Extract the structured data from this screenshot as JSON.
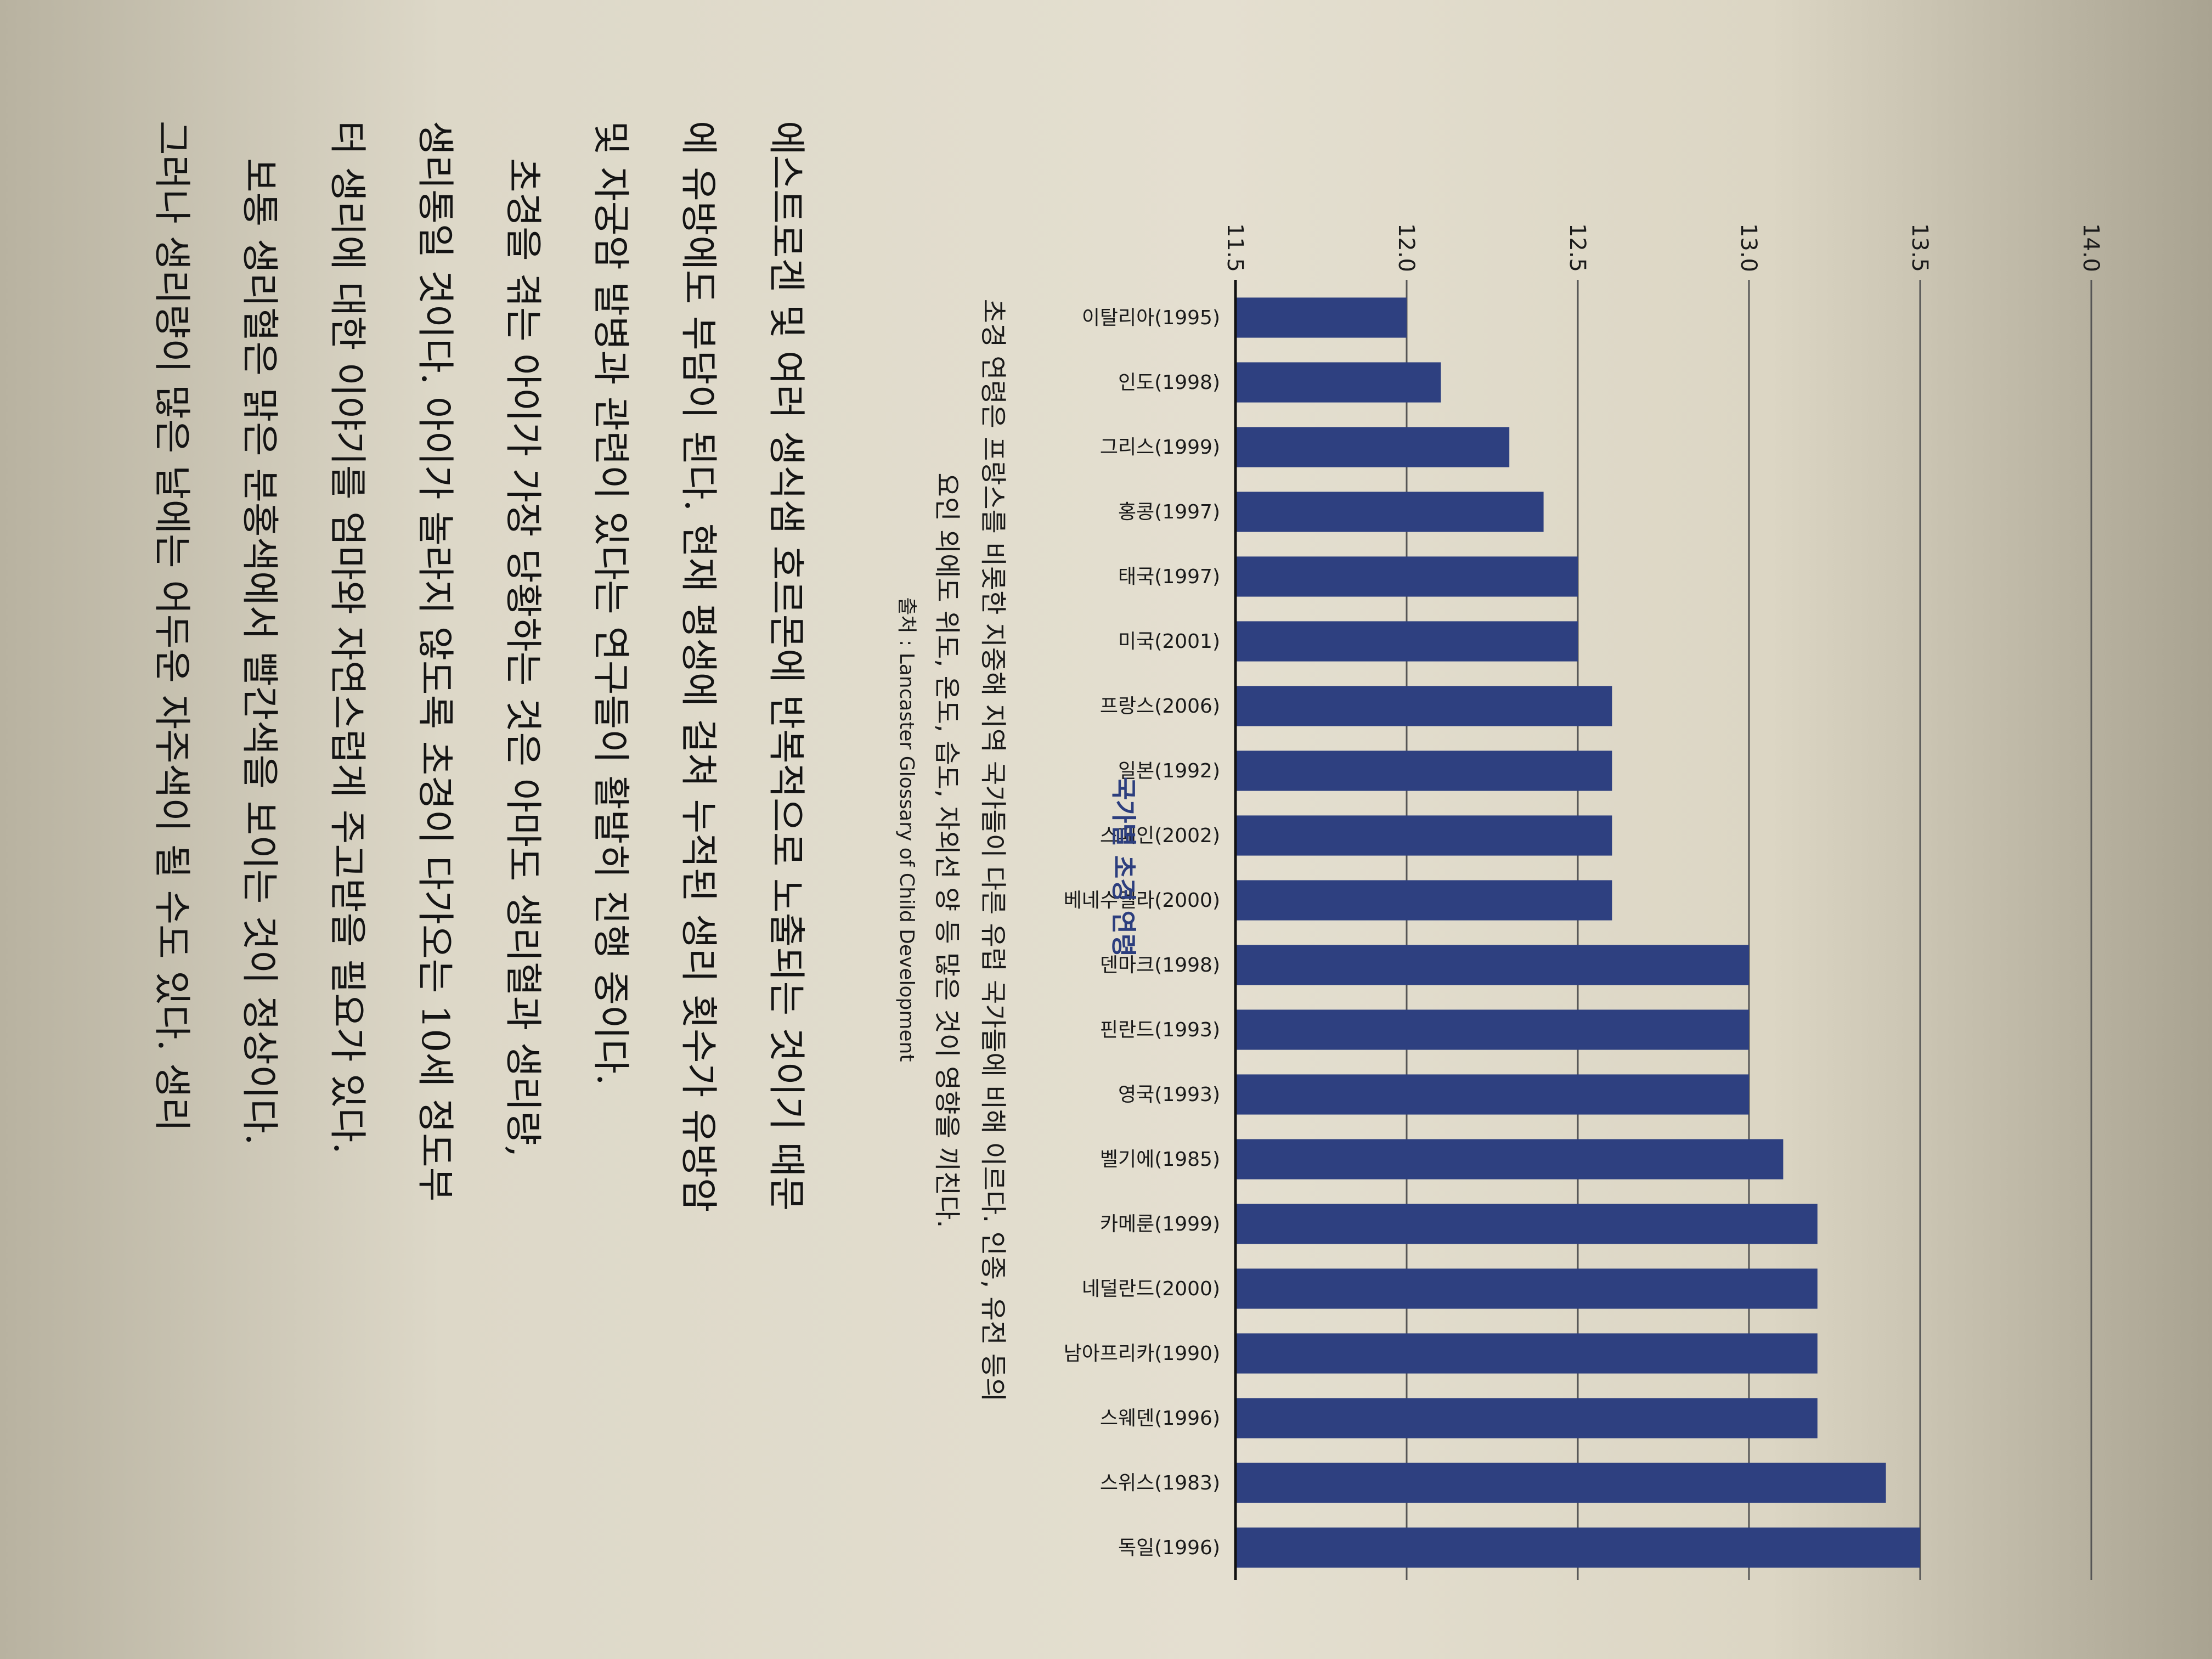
{
  "chart_data": {
    "type": "bar",
    "orientation": "vertical",
    "title": "국가별 초경 연령",
    "categories": [
      "이탈리아(1995)",
      "인도(1998)",
      "그리스(1999)",
      "홍콩(1997)",
      "태국(1997)",
      "미국(2001)",
      "프랑스(2006)",
      "일본(1992)",
      "스페인(2002)",
      "베네수엘라(2000)",
      "덴마크(1998)",
      "핀란드(1993)",
      "영국(1993)",
      "벨기에(1985)",
      "카메룬(1999)",
      "네덜란드(2000)",
      "남아프리카(1990)",
      "스웨덴(1996)",
      "스위스(1983)",
      "독일(1996)"
    ],
    "values": [
      12.0,
      12.1,
      12.3,
      12.4,
      12.5,
      12.5,
      12.6,
      12.6,
      12.6,
      12.6,
      13.0,
      13.0,
      13.0,
      13.1,
      13.2,
      13.2,
      13.2,
      13.2,
      13.4,
      13.5
    ],
    "ylim": [
      11.5,
      14.0
    ],
    "yticks": [
      "11.5",
      "12.0",
      "12.5",
      "13.0",
      "13.5",
      "14.0"
    ],
    "grid": true,
    "bar_color": "#2e4080",
    "xlabel": "",
    "ylabel": ""
  },
  "caption": {
    "line1": "초경 연령은 프랑스를 비롯한 지중해 지역 국가들이 다른 유럽 국가들에 비해 이르다. 인종, 유전 등의",
    "line2": "요인 외에도 위도, 온도, 습도, 자외선 양 등 많은 것이 영향을 끼친다.",
    "source": "출처 : Lancaster Glossary of Child Development"
  },
  "body": {
    "lines": [
      "에스트로겐 및 여러 생식샘 호르몬에 반복적으로 노출되는 것이기 때문",
      "에 유방에도 부담이 된다. 현재 평생에 걸쳐 누적된 생리 횟수가 유방암",
      "및 자궁암 발병과 관련이 있다는 연구들이 활발히 진행 중이다.",
      "초경을 겪는 아이가 가장 당황하는 것은 아마도 생리혈과 생리량,",
      "생리통일 것이다. 아이가 놀라지 않도록 초경이 다가오는 10세 정도부",
      "터 생리에 대한 이야기를 엄마와 자연스럽게 주고받을 필요가 있다.",
      "보통 생리혈은 맑은 분홍색에서 빨간색을 보이는 것이 정상이다.",
      "그러나 생리량이 많은 날에는 어두운 자주색이 될 수도 있다. 생리"
    ]
  }
}
